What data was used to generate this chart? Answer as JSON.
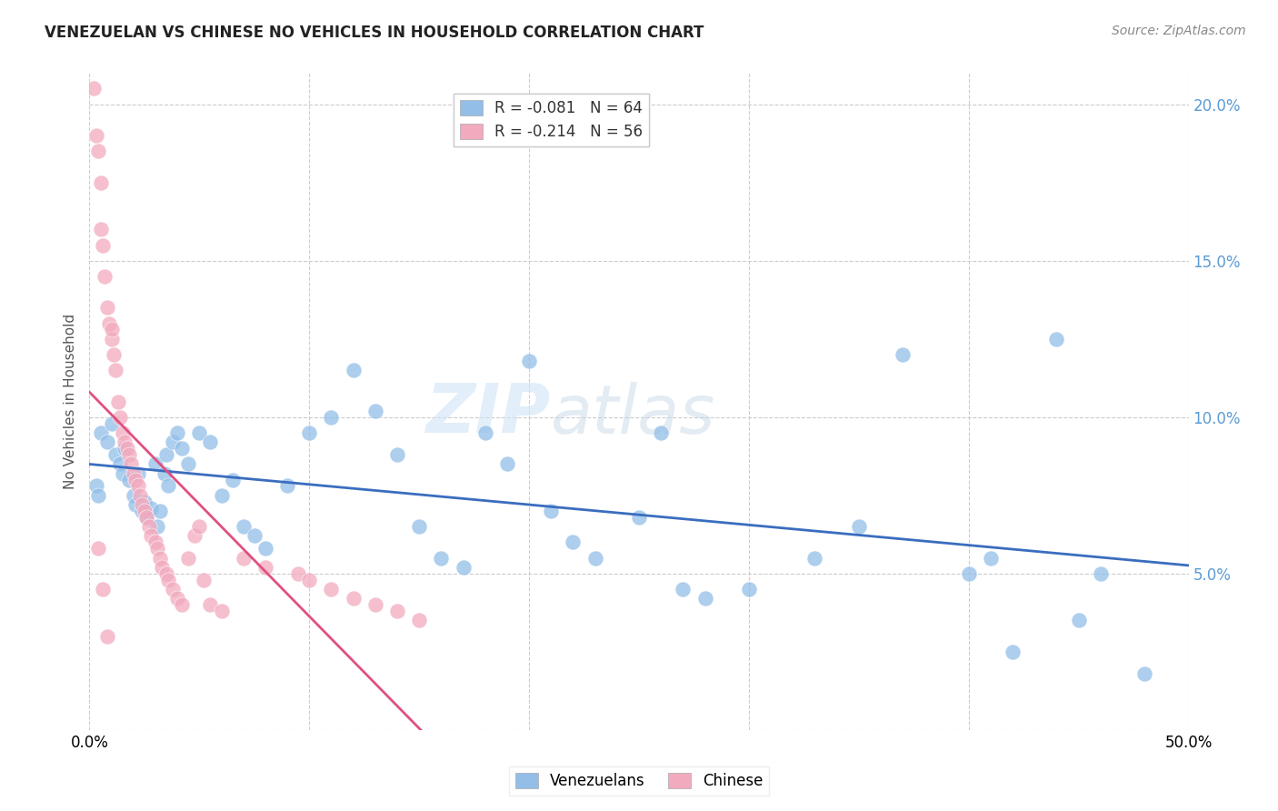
{
  "title": "VENEZUELAN VS CHINESE NO VEHICLES IN HOUSEHOLD CORRELATION CHART",
  "source": "Source: ZipAtlas.com",
  "ylabel": "No Vehicles in Household",
  "watermark_zip": "ZIP",
  "watermark_atlas": "atlas",
  "xlim": [
    0,
    50
  ],
  "ylim": [
    0,
    21
  ],
  "ytick_vals": [
    0,
    5,
    10,
    15,
    20
  ],
  "xtick_vals": [
    0,
    10,
    20,
    30,
    40,
    50
  ],
  "r_ven": -0.081,
  "n_ven": 64,
  "r_chi": -0.214,
  "n_chi": 56,
  "color_ven": "#92BEE8",
  "color_chi": "#F2AABE",
  "line_color_ven": "#3A6DBF",
  "line_color_chi": "#E05080",
  "right_tick_color": "#5B9BD5",
  "background_color": "#FFFFFF",
  "grid_color": "#CCCCCC",
  "venezuelan_x": [
    0.3,
    0.4,
    0.5,
    0.8,
    1.0,
    1.2,
    1.4,
    1.5,
    1.6,
    1.8,
    2.0,
    2.1,
    2.2,
    2.4,
    2.5,
    2.6,
    2.8,
    3.0,
    3.1,
    3.2,
    3.4,
    3.5,
    3.6,
    3.8,
    4.0,
    4.2,
    4.5,
    5.0,
    5.5,
    6.0,
    6.5,
    7.0,
    7.5,
    8.0,
    9.0,
    10.0,
    11.0,
    12.0,
    13.0,
    14.0,
    15.0,
    16.0,
    17.0,
    18.0,
    19.0,
    20.0,
    21.0,
    22.0,
    23.0,
    25.0,
    26.0,
    27.0,
    28.0,
    30.0,
    33.0,
    35.0,
    37.0,
    40.0,
    41.0,
    42.0,
    44.0,
    45.0,
    46.0,
    48.0
  ],
  "venezuelan_y": [
    7.8,
    7.5,
    9.5,
    9.2,
    9.8,
    8.8,
    8.5,
    8.2,
    9.0,
    8.0,
    7.5,
    7.2,
    8.2,
    7.0,
    7.3,
    6.8,
    7.1,
    8.5,
    6.5,
    7.0,
    8.2,
    8.8,
    7.8,
    9.2,
    9.5,
    9.0,
    8.5,
    9.5,
    9.2,
    7.5,
    8.0,
    6.5,
    6.2,
    5.8,
    7.8,
    9.5,
    10.0,
    11.5,
    10.2,
    8.8,
    6.5,
    5.5,
    5.2,
    9.5,
    8.5,
    11.8,
    7.0,
    6.0,
    5.5,
    6.8,
    9.5,
    4.5,
    4.2,
    4.5,
    5.5,
    6.5,
    12.0,
    5.0,
    5.5,
    2.5,
    12.5,
    3.5,
    5.0,
    1.8
  ],
  "chinese_x": [
    0.2,
    0.3,
    0.4,
    0.5,
    0.5,
    0.6,
    0.7,
    0.8,
    0.9,
    1.0,
    1.0,
    1.1,
    1.2,
    1.3,
    1.4,
    1.5,
    1.6,
    1.7,
    1.8,
    1.9,
    2.0,
    2.1,
    2.2,
    2.3,
    2.4,
    2.5,
    2.6,
    2.7,
    2.8,
    3.0,
    3.1,
    3.2,
    3.3,
    3.5,
    3.6,
    3.8,
    4.0,
    4.2,
    4.5,
    4.8,
    5.0,
    5.2,
    5.5,
    6.0,
    7.0,
    8.0,
    9.5,
    10.0,
    11.0,
    12.0,
    13.0,
    14.0,
    15.0,
    0.4,
    0.6,
    0.8
  ],
  "chinese_y": [
    20.5,
    19.0,
    18.5,
    17.5,
    16.0,
    15.5,
    14.5,
    13.5,
    13.0,
    12.5,
    12.8,
    12.0,
    11.5,
    10.5,
    10.0,
    9.5,
    9.2,
    9.0,
    8.8,
    8.5,
    8.2,
    8.0,
    7.8,
    7.5,
    7.2,
    7.0,
    6.8,
    6.5,
    6.2,
    6.0,
    5.8,
    5.5,
    5.2,
    5.0,
    4.8,
    4.5,
    4.2,
    4.0,
    5.5,
    6.2,
    6.5,
    4.8,
    4.0,
    3.8,
    5.5,
    5.2,
    5.0,
    4.8,
    4.5,
    4.2,
    4.0,
    3.8,
    3.5,
    5.8,
    4.5,
    3.0
  ]
}
